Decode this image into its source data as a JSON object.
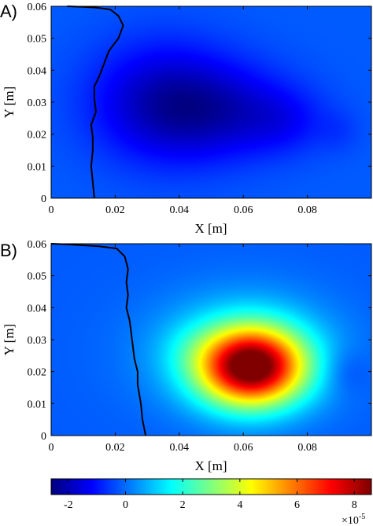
{
  "chart_data": [
    {
      "type": "heatmap",
      "panel_label": "A)",
      "xlabel": "X [m]",
      "ylabel": "Y [m]",
      "xlim": [
        0,
        0.1
      ],
      "ylim": [
        0,
        0.06
      ],
      "x_ticks": [
        "0",
        "0.02",
        "0.04",
        "0.06",
        "0.08"
      ],
      "y_ticks": [
        "0",
        "0.01",
        "0.02",
        "0.03",
        "0.04",
        "0.05",
        "0.06"
      ],
      "x_tick_values": [
        0,
        0.02,
        0.04,
        0.06,
        0.08
      ],
      "y_tick_values": [
        0,
        0.01,
        0.02,
        0.03,
        0.04,
        0.05,
        0.06
      ],
      "background_value": -0.2,
      "blobs": [
        {
          "x": 0.035,
          "y": 0.03,
          "sx": 0.016,
          "sy": 0.013,
          "v": -1.7
        },
        {
          "x": 0.055,
          "y": 0.027,
          "sx": 0.016,
          "sy": 0.01,
          "v": -1.2
        },
        {
          "x": 0.073,
          "y": 0.024,
          "sx": 0.009,
          "sy": 0.007,
          "v": -0.6
        },
        {
          "x": 0.09,
          "y": 0.021,
          "sx": 0.005,
          "sy": 0.005,
          "v": -0.3
        }
      ],
      "interface_line": [
        [
          0.005,
          0.06
        ],
        [
          0.01,
          0.0598
        ],
        [
          0.014,
          0.0596
        ],
        [
          0.0185,
          0.059
        ],
        [
          0.021,
          0.057
        ],
        [
          0.0225,
          0.054
        ],
        [
          0.021,
          0.05
        ],
        [
          0.018,
          0.046
        ],
        [
          0.0165,
          0.042
        ],
        [
          0.015,
          0.038
        ],
        [
          0.0135,
          0.035
        ],
        [
          0.0135,
          0.031
        ],
        [
          0.014,
          0.027
        ],
        [
          0.0125,
          0.023
        ],
        [
          0.013,
          0.019
        ],
        [
          0.013,
          0.015
        ],
        [
          0.0125,
          0.01
        ],
        [
          0.013,
          0.005
        ],
        [
          0.0135,
          0.0
        ]
      ]
    },
    {
      "type": "heatmap",
      "panel_label": "B)",
      "xlabel": "X [m]",
      "ylabel": "Y [m]",
      "xlim": [
        0,
        0.1
      ],
      "ylim": [
        0,
        0.06
      ],
      "x_ticks": [
        "0",
        "0.02",
        "0.04",
        "0.06",
        "0.08"
      ],
      "y_ticks": [
        "0",
        "0.01",
        "0.02",
        "0.03",
        "0.04",
        "0.05",
        "0.06"
      ],
      "x_tick_values": [
        0,
        0.02,
        0.04,
        0.06,
        0.08
      ],
      "y_tick_values": [
        0,
        0.01,
        0.02,
        0.03,
        0.04,
        0.05,
        0.06
      ],
      "background_value": -0.2,
      "blobs": [
        {
          "x": 0.0625,
          "y": 0.0215,
          "sx": 0.0115,
          "sy": 0.0085,
          "v": 8.4
        },
        {
          "x": 0.06,
          "y": 0.026,
          "sx": 0.02,
          "sy": 0.013,
          "v": 1.6
        },
        {
          "x": 0.043,
          "y": 0.027,
          "sx": 0.007,
          "sy": 0.006,
          "v": 0.3
        },
        {
          "x": 0.092,
          "y": 0.02,
          "sx": 0.005,
          "sy": 0.005,
          "v": -0.5
        }
      ],
      "interface_line": [
        [
          0.0,
          0.06
        ],
        [
          0.005,
          0.0598
        ],
        [
          0.01,
          0.0595
        ],
        [
          0.015,
          0.0592
        ],
        [
          0.0205,
          0.0585
        ],
        [
          0.023,
          0.056
        ],
        [
          0.024,
          0.052
        ],
        [
          0.0235,
          0.048
        ],
        [
          0.024,
          0.044
        ],
        [
          0.0235,
          0.04
        ],
        [
          0.0245,
          0.036
        ],
        [
          0.025,
          0.032
        ],
        [
          0.0255,
          0.028
        ],
        [
          0.026,
          0.024
        ],
        [
          0.027,
          0.02
        ],
        [
          0.027,
          0.016
        ],
        [
          0.028,
          0.01
        ],
        [
          0.0285,
          0.005
        ],
        [
          0.0295,
          0.0
        ]
      ]
    }
  ],
  "colorbar": {
    "min": -2.6,
    "max": 8.6,
    "ticks": [
      "-2",
      "0",
      "2",
      "4",
      "6",
      "8"
    ],
    "tick_values": [
      -2,
      0,
      2,
      4,
      6,
      8
    ],
    "multiplier_base": "×10",
    "multiplier_exp": "-5"
  }
}
